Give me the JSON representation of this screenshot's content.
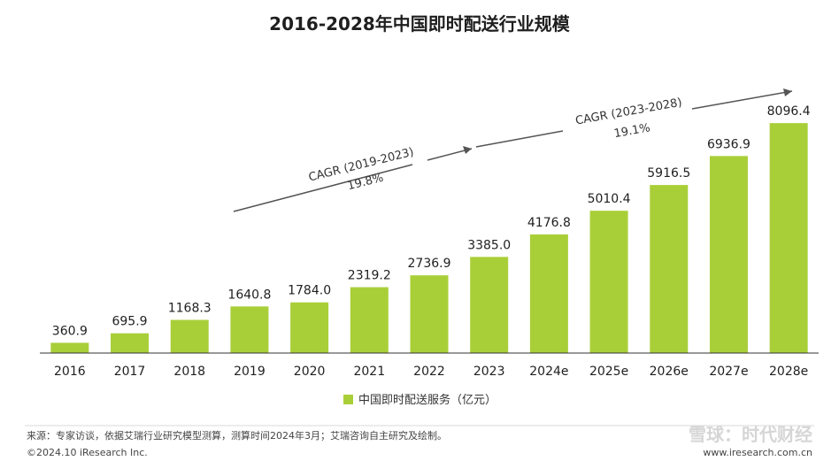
{
  "page": {
    "background": "#ffffff"
  },
  "chart_data": {
    "type": "bar",
    "title": "2016-2028年中国即时配送行业规模",
    "categories": [
      "2016",
      "2017",
      "2018",
      "2019",
      "2020",
      "2021",
      "2022",
      "2023",
      "2024e",
      "2025e",
      "2026e",
      "2027e",
      "2028e"
    ],
    "series": [
      {
        "name": "中国即时配送服务（亿元）",
        "color": "#a9cf38",
        "values": [
          360.9,
          695.9,
          1168.3,
          1640.8,
          1784.0,
          2319.2,
          2736.9,
          3385.0,
          4176.8,
          5010.4,
          5916.5,
          6936.9,
          8096.4
        ],
        "labels": [
          "360.9",
          "695.9",
          "1168.3",
          "1640.8",
          "1784.0",
          "2319.2",
          "2736.9",
          "3385.0",
          "4176.8",
          "5010.4",
          "5916.5",
          "6936.9",
          "8096.4"
        ]
      }
    ],
    "ylim": [
      0,
      10250
    ],
    "grid": false,
    "legend_position": "bottom-center",
    "annotations": [
      {
        "label": "CAGR (2019-2023)",
        "value": "19.8%",
        "from": "2019",
        "to": "2023"
      },
      {
        "label": "CAGR (2023-2028)",
        "value": "19.1%",
        "from": "2023",
        "to": "2028e"
      }
    ]
  },
  "footer": {
    "source": "来源：专家访谈，依据艾瑞行业研究模型测算，测算时间2024年3月；艾瑞咨询自主研究及绘制。",
    "copyright": "©2024.10 iResearch Inc.",
    "website": "www.iresearch.com.cn",
    "watermark": "雪球：时代财经"
  },
  "colors": {
    "axis": "#333333",
    "arrow": "#555555",
    "text": "#1f1f1f"
  }
}
